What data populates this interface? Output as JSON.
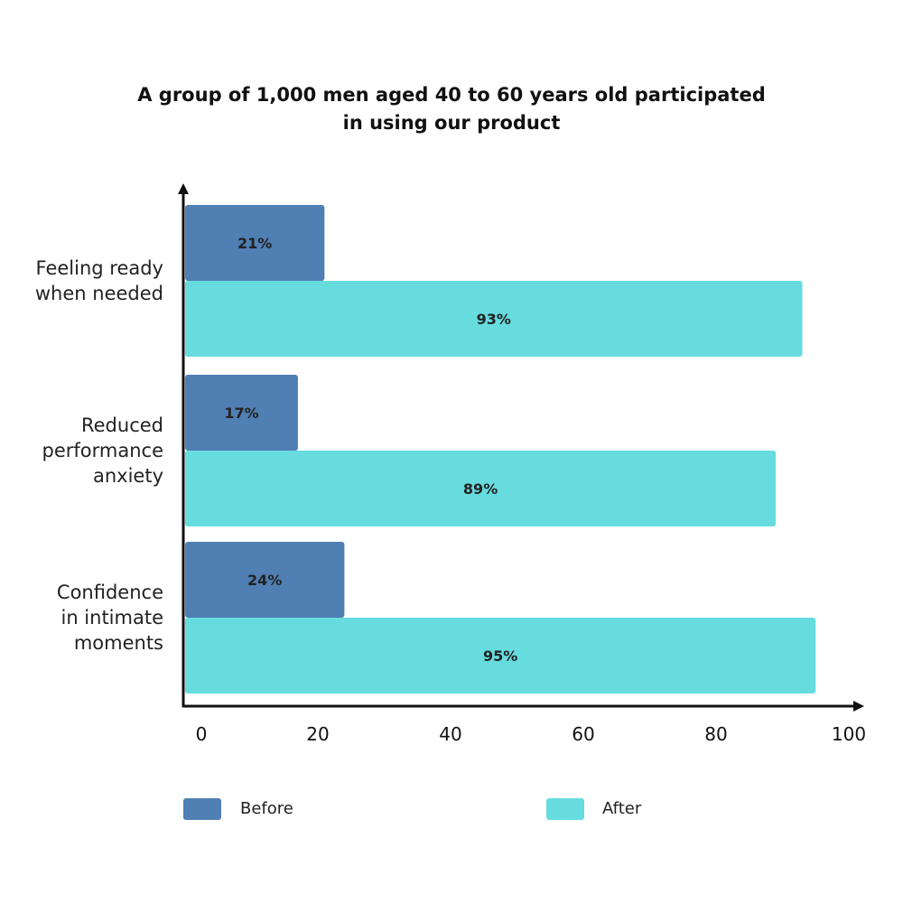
{
  "chart_data": {
    "type": "bar",
    "orientation": "horizontal",
    "title": "A group of 1,000 men aged 40 to 60 years old participated in using our product",
    "title_lines": [
      "A group of 1,000 men aged 40 to 60 years old participated",
      "in using our product"
    ],
    "categories": [
      "Feeling ready when needed",
      "Reduced performance anxiety",
      "Confidence in intimate moments"
    ],
    "category_lines": [
      [
        "Feeling ready",
        "when needed"
      ],
      [
        "Reduced",
        "performance",
        "anxiety"
      ],
      [
        "Confidence",
        "in intimate",
        "moments"
      ]
    ],
    "series": [
      {
        "name": "Before",
        "values": [
          21,
          17,
          24
        ],
        "labels": [
          "21%",
          "17%",
          "24%"
        ],
        "color": "#4f7fb3"
      },
      {
        "name": "After",
        "values": [
          93,
          89,
          95
        ],
        "labels": [
          "93%",
          "89%",
          "95%"
        ],
        "color": "#66dcdf"
      }
    ],
    "xlim": [
      0,
      100
    ],
    "xticks": [
      "0",
      "20",
      "40",
      "60",
      "80",
      "100"
    ],
    "grid": false,
    "legend_position": "bottom"
  }
}
